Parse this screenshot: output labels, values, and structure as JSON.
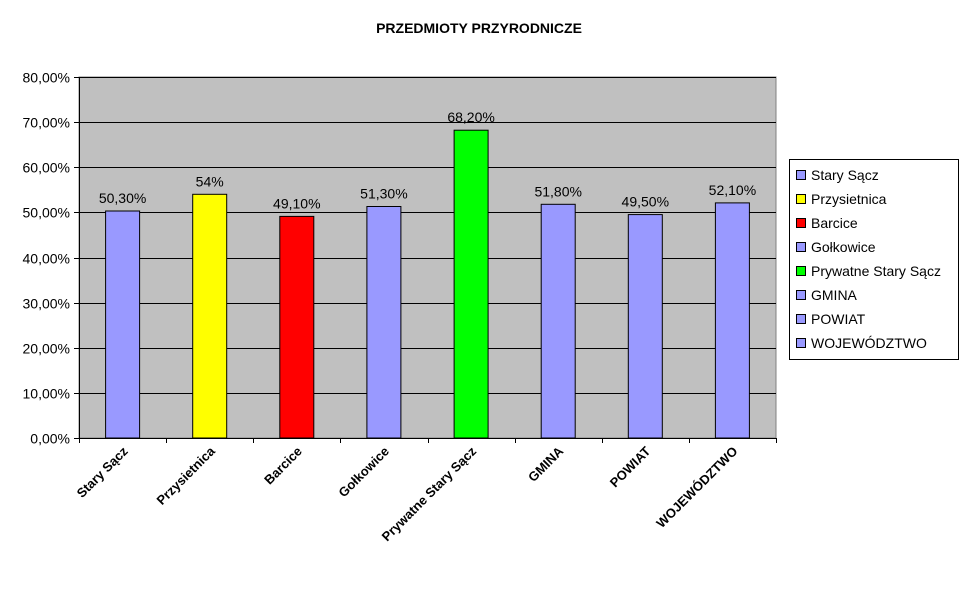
{
  "chart_data": {
    "type": "bar",
    "title": "PRZEDMIOTY PRZYRODNICZE",
    "xlabel": "",
    "ylabel": "",
    "categories": [
      "Stary Sącz",
      "Przysietnica",
      "Barcice",
      "Gołkowice",
      "Prywatne Stary Sącz",
      "GMINA",
      "POWIAT",
      "WOJEWÓDZTWO"
    ],
    "values": [
      50.3,
      54,
      49.1,
      51.3,
      68.2,
      51.8,
      49.5,
      52.1
    ],
    "data_labels": [
      "50,30%",
      "54%",
      "49,10%",
      "51,30%",
      "68,20%",
      "51,80%",
      "49,50%",
      "52,10%"
    ],
    "colors": [
      "#9999ff",
      "#ffff00",
      "#ff0000",
      "#9999ff",
      "#00ff00",
      "#9999ff",
      "#9999ff",
      "#9999ff"
    ],
    "ylim": [
      0,
      80
    ],
    "ytick_values": [
      0,
      10,
      20,
      30,
      40,
      50,
      60,
      70,
      80
    ],
    "ytick_labels": [
      "0,00%",
      "10,00%",
      "20,00%",
      "30,00%",
      "40,00%",
      "50,00%",
      "60,00%",
      "70,00%",
      "80,00%"
    ],
    "grid": true,
    "plot_background": "#c0c0c0",
    "legend": {
      "placement": "right",
      "entries": [
        "Stary Sącz",
        "Przysietnica",
        "Barcice",
        "Gołkowice",
        "Prywatne Stary Sącz",
        "GMINA",
        "POWIAT",
        "WOJEWÓDZTWO"
      ]
    }
  }
}
